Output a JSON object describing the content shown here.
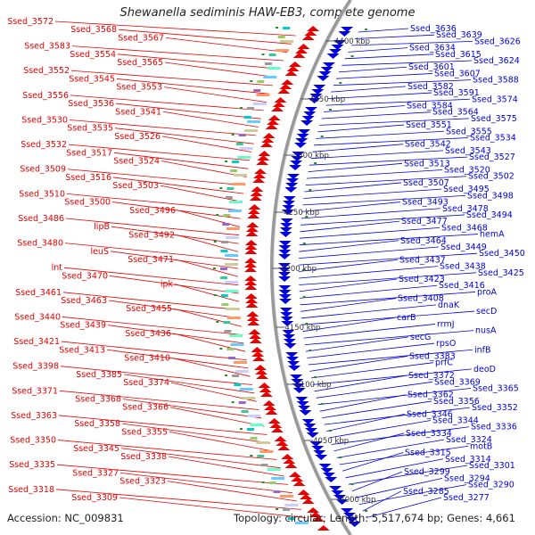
{
  "title": "Shewanella sediminis HAW-EB3, complete genome",
  "accession": "Accession: NC_009831",
  "summary": "Topology: circular; Length: 5,517,674 bp; Genes: 4,661",
  "colors": {
    "reverse": "#e60000",
    "forward": "#0000dd",
    "backbone": "#999999",
    "tick": "#2a8a2a"
  },
  "kbp_markers": [
    "4400 kbp",
    "4350 kbp",
    "4300 kbp",
    "4250 kbp",
    "4200 kbp",
    "4150 kbp",
    "4100 kbp",
    "4050 kbp",
    "4000 kbp"
  ],
  "left_labels": [
    "Ssed_3572",
    "Ssed_3568",
    "Ssed_3567",
    "Ssed_3583",
    "Ssed_3554",
    "Ssed_3565",
    "Ssed_3552",
    "Ssed_3545",
    "Ssed_3553",
    "Ssed_3556",
    "Ssed_3536",
    "Ssed_3541",
    "Ssed_3530",
    "Ssed_3535",
    "Ssed_3526",
    "Ssed_3532",
    "Ssed_3517",
    "Ssed_3524",
    "Ssed_3509",
    "Ssed_3516",
    "Ssed_3503",
    "Ssed_3510",
    "Ssed_3500",
    "Ssed_3496",
    "Ssed_3486",
    "lipB",
    "Ssed_3492",
    "Ssed_3480",
    "leuS",
    "Ssed_3471",
    "lnt",
    "Ssed_3470",
    "ipk",
    "Ssed_3461",
    "Ssed_3463",
    "Ssed_3455",
    "Ssed_3440",
    "Ssed_3439",
    "Ssed_3436",
    "Ssed_3421",
    "Ssed_3413",
    "Ssed_3410",
    "Ssed_3398",
    "Ssed_3385",
    "Ssed_3374",
    "Ssed_3371",
    "Ssed_3368",
    "Ssed_3366",
    "Ssed_3363",
    "Ssed_3358",
    "Ssed_3355",
    "Ssed_3350",
    "Ssed_3345",
    "Ssed_3338",
    "Ssed_3335",
    "Ssed_3327",
    "Ssed_3323",
    "Ssed_3318",
    "Ssed_3309"
  ],
  "right_labels": [
    "Ssed_3636",
    "Ssed_3639",
    "Ssed_3626",
    "Ssed_3634",
    "Ssed_3615",
    "Ssed_3624",
    "Ssed_3601",
    "Ssed_3607",
    "Ssed_3588",
    "Ssed_3582",
    "Ssed_3591",
    "Ssed_3574",
    "Ssed_3584",
    "Ssed_3564",
    "Ssed_3575",
    "Ssed_3551",
    "Ssed_3555",
    "Ssed_3534",
    "Ssed_3542",
    "Ssed_3543",
    "Ssed_3527",
    "Ssed_3513",
    "Ssed_3520",
    "Ssed_3502",
    "Ssed_3507",
    "Ssed_3495",
    "Ssed_3498",
    "Ssed_3493",
    "Ssed_3478",
    "Ssed_3494",
    "Ssed_3477",
    "Ssed_3468",
    "hemA",
    "Ssed_3464",
    "Ssed_3449",
    "Ssed_3450",
    "Ssed_3437",
    "Ssed_3438",
    "Ssed_3425",
    "Ssed_3423",
    "Ssed_3416",
    "proA",
    "Ssed_3408",
    "dnaK",
    "secD",
    "carB",
    "rrmJ",
    "nusA",
    "secG",
    "rpsO",
    "infB",
    "Ssed_3383",
    "prfC",
    "deoD",
    "Ssed_3372",
    "Ssed_3369",
    "Ssed_3365",
    "Ssed_3362",
    "Ssed_3356",
    "Ssed_3352",
    "Ssed_3346",
    "Ssed_3344",
    "Ssed_3336",
    "Ssed_3334",
    "Ssed_3324",
    "motB",
    "Ssed_3315",
    "Ssed_3314",
    "Ssed_3301",
    "Ssed_3299",
    "Ssed_3294",
    "Ssed_3290",
    "Ssed_3285",
    "Ssed_3277"
  ]
}
